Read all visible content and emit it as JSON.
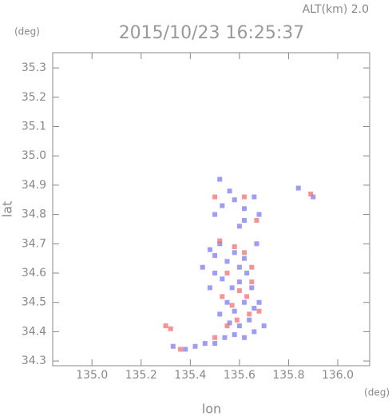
{
  "chart_data": {
    "type": "scatter",
    "title": "2015/10/23 16:25:37",
    "annotation": "ALT(km) 2.0",
    "y_unit": "(deg)",
    "x_unit": "(deg)",
    "xlabel": "lon",
    "ylabel": "lat",
    "xlim": [
      134.84,
      136.13
    ],
    "ylim": [
      34.284,
      35.352
    ],
    "xticks": [
      {
        "value": 135,
        "label": "135.0"
      },
      135.2,
      135.4,
      135.6,
      135.8,
      {
        "value": 136,
        "label": "136.0"
      }
    ],
    "yticks": [
      34.3,
      34.4,
      34.5,
      34.6,
      34.7,
      34.8,
      34.9,
      {
        "value": 35,
        "label": "35.0"
      },
      35.1,
      35.2,
      35.3
    ],
    "grid": false,
    "series": [
      {
        "color": "#7c7cf0",
        "x": [
          135.52,
          135.56,
          135.58,
          135.62,
          135.66,
          135.68,
          135.5,
          135.53,
          135.6,
          135.62,
          135.84,
          135.9,
          135.48,
          135.5,
          135.52,
          135.55,
          135.58,
          135.6,
          135.62,
          135.5,
          135.53,
          135.57,
          135.6,
          135.63,
          135.65,
          135.48,
          135.55,
          135.58,
          135.62,
          135.66,
          135.68,
          135.52,
          135.56,
          135.6,
          135.64,
          135.58,
          135.62,
          135.54,
          135.5,
          135.46,
          135.42,
          135.38,
          135.33,
          135.66,
          135.7,
          135.67,
          135.45
        ],
        "values": [
          34.92,
          34.88,
          34.85,
          34.82,
          34.86,
          34.8,
          34.8,
          34.83,
          34.76,
          34.78,
          34.89,
          34.86,
          34.68,
          34.66,
          34.7,
          34.64,
          34.67,
          34.62,
          34.65,
          34.6,
          34.58,
          34.55,
          34.57,
          34.6,
          34.55,
          34.55,
          34.5,
          34.47,
          34.5,
          34.48,
          34.5,
          34.46,
          34.43,
          34.42,
          34.44,
          34.39,
          34.38,
          34.38,
          34.36,
          34.36,
          34.35,
          34.34,
          34.35,
          34.4,
          34.42,
          34.7,
          34.62
        ]
      },
      {
        "color": "#f07070",
        "x": [
          135.5,
          135.62,
          135.67,
          135.89,
          135.52,
          135.58,
          135.62,
          135.65,
          135.55,
          135.6,
          135.63,
          135.57,
          135.64,
          135.59,
          135.55,
          135.3,
          135.32,
          135.5,
          135.65,
          135.53,
          135.68,
          135.36
        ],
        "values": [
          34.86,
          34.86,
          34.78,
          34.87,
          34.71,
          34.69,
          34.67,
          34.62,
          34.6,
          34.54,
          34.52,
          34.49,
          34.46,
          34.44,
          34.42,
          34.42,
          34.41,
          34.38,
          34.57,
          34.52,
          34.47,
          34.34
        ]
      }
    ]
  }
}
